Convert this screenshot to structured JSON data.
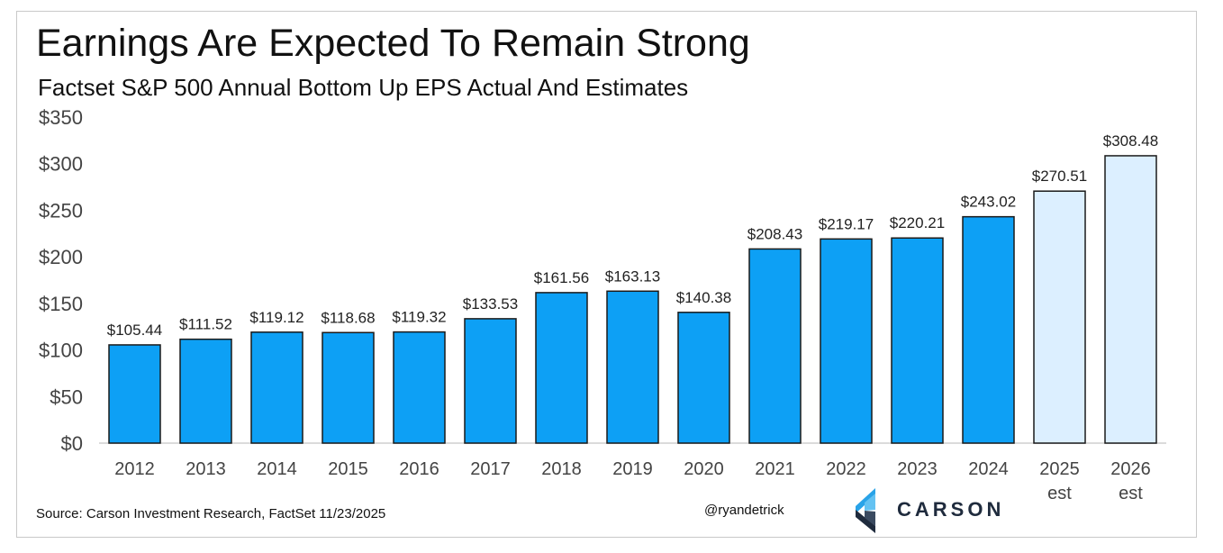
{
  "title": "Earnings Are Expected To Remain Strong",
  "subtitle": "Factset S&P 500 Annual Bottom Up EPS Actual And Estimates",
  "footer": {
    "source": "Source: Carson Investment Research, FactSet 11/23/2025",
    "handle": "@ryandetrick",
    "brand": "CARSON"
  },
  "colors": {
    "actual": "#0da0f5",
    "estimate": "#dcefff",
    "bar_stroke": "#1a1a1a",
    "axis_text": "#444444",
    "label_text": "#222222"
  },
  "chart_data": {
    "type": "bar",
    "title": "Earnings Are Expected To Remain Strong",
    "subtitle": "Factset S&P 500 Annual Bottom Up EPS Actual And Estimates",
    "xlabel": "",
    "ylabel": "",
    "ylim": [
      0,
      350
    ],
    "yticks": [
      0,
      50,
      100,
      150,
      200,
      250,
      300,
      350
    ],
    "ytick_labels": [
      "$0",
      "$50",
      "$100",
      "$150",
      "$200",
      "$250",
      "$300",
      "$350"
    ],
    "grid": false,
    "categories": [
      [
        "2012"
      ],
      [
        "2013"
      ],
      [
        "2014"
      ],
      [
        "2015"
      ],
      [
        "2016"
      ],
      [
        "2017"
      ],
      [
        "2018"
      ],
      [
        "2019"
      ],
      [
        "2020"
      ],
      [
        "2021"
      ],
      [
        "2022"
      ],
      [
        "2023"
      ],
      [
        "2024"
      ],
      [
        "2025",
        "est"
      ],
      [
        "2026",
        "est"
      ]
    ],
    "values": [
      105.44,
      111.52,
      119.12,
      118.68,
      119.32,
      133.53,
      161.56,
      163.13,
      140.38,
      208.43,
      219.17,
      220.21,
      243.02,
      270.51,
      308.48
    ],
    "data_labels": [
      "$105.44",
      "$111.52",
      "$119.12",
      "$118.68",
      "$119.32",
      "$133.53",
      "$161.56",
      "$163.13",
      "$140.38",
      "$208.43",
      "$219.17",
      "$220.21",
      "$243.02",
      "$270.51",
      "$308.48"
    ],
    "estimate": [
      false,
      false,
      false,
      false,
      false,
      false,
      false,
      false,
      false,
      false,
      false,
      false,
      false,
      true,
      true
    ]
  }
}
